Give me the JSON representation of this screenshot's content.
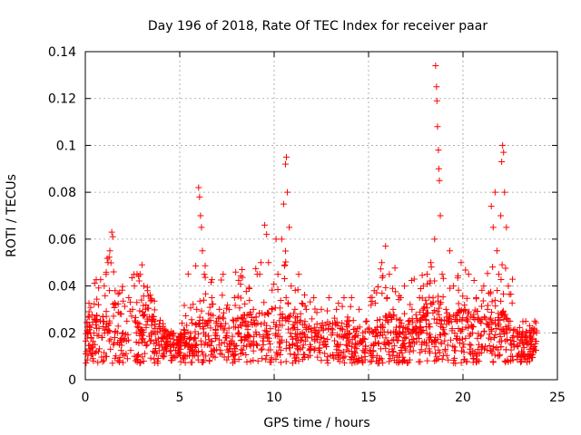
{
  "chart_data": {
    "type": "scatter",
    "title": "Day 196 of 2018, Rate Of TEC Index for receiver paar",
    "xlabel": "GPS time / hours",
    "ylabel": "ROTI / TECUs",
    "xlim": [
      0,
      25
    ],
    "ylim": [
      0,
      0.14
    ],
    "x_ticks": [
      0,
      5,
      10,
      15,
      20,
      25
    ],
    "x_tick_labels": [
      "0",
      "5",
      "10",
      "15",
      "20",
      "25"
    ],
    "y_ticks": [
      0,
      0.02,
      0.04,
      0.06,
      0.08,
      0.1,
      0.12,
      0.14
    ],
    "y_tick_labels": [
      "0",
      "0.02",
      "0.04",
      "0.06",
      "0.08",
      "0.1",
      "0.12",
      "0.14"
    ],
    "grid": true,
    "marker": "+",
    "color": "#ff0000",
    "series": [
      {
        "name": "ROTI",
        "hourly_profile": [
          {
            "hour": 0,
            "typical": 0.016,
            "max": 0.029
          },
          {
            "hour": 1,
            "typical": 0.02,
            "max": 0.055
          },
          {
            "hour": 1.4,
            "typical": 0.025,
            "max": 0.063
          },
          {
            "hour": 2,
            "typical": 0.018,
            "max": 0.04
          },
          {
            "hour": 3,
            "typical": 0.024,
            "max": 0.049
          },
          {
            "hour": 4,
            "typical": 0.015,
            "max": 0.027
          },
          {
            "hour": 5,
            "typical": 0.013,
            "max": 0.018
          },
          {
            "hour": 6,
            "typical": 0.02,
            "max": 0.082
          },
          {
            "hour": 7,
            "typical": 0.018,
            "max": 0.045
          },
          {
            "hour": 8,
            "typical": 0.018,
            "max": 0.047
          },
          {
            "hour": 9,
            "typical": 0.02,
            "max": 0.05
          },
          {
            "hour": 9.6,
            "typical": 0.022,
            "max": 0.066
          },
          {
            "hour": 10.6,
            "typical": 0.025,
            "max": 0.095
          },
          {
            "hour": 11,
            "typical": 0.018,
            "max": 0.045
          },
          {
            "hour": 12,
            "typical": 0.016,
            "max": 0.035
          },
          {
            "hour": 13,
            "typical": 0.017,
            "max": 0.035
          },
          {
            "hour": 14,
            "typical": 0.016,
            "max": 0.035
          },
          {
            "hour": 15,
            "typical": 0.015,
            "max": 0.038
          },
          {
            "hour": 16,
            "typical": 0.02,
            "max": 0.057
          },
          {
            "hour": 17,
            "typical": 0.016,
            "max": 0.04
          },
          {
            "hour": 18,
            "typical": 0.022,
            "max": 0.05
          },
          {
            "hour": 18.6,
            "typical": 0.025,
            "max": 0.134
          },
          {
            "hour": 19,
            "typical": 0.02,
            "max": 0.055
          },
          {
            "hour": 20,
            "typical": 0.02,
            "max": 0.05
          },
          {
            "hour": 21,
            "typical": 0.018,
            "max": 0.04
          },
          {
            "hour": 21.6,
            "typical": 0.02,
            "max": 0.08
          },
          {
            "hour": 22.1,
            "typical": 0.02,
            "max": 0.1
          },
          {
            "hour": 23,
            "typical": 0.013,
            "max": 0.025
          },
          {
            "hour": 23.9,
            "typical": 0.015,
            "max": 0.025
          }
        ],
        "points": [
          [
            0.05,
            0.012
          ],
          [
            0.1,
            0.021
          ],
          [
            0.15,
            0.027
          ],
          [
            0.2,
            0.029
          ],
          [
            0.3,
            0.018
          ],
          [
            0.4,
            0.009
          ],
          [
            0.5,
            0.015
          ],
          [
            0.6,
            0.022
          ],
          [
            0.7,
            0.012
          ],
          [
            0.8,
            0.025
          ],
          [
            0.9,
            0.018
          ],
          [
            1.0,
            0.04
          ],
          [
            1.1,
            0.045
          ],
          [
            1.2,
            0.05
          ],
          [
            1.3,
            0.055
          ],
          [
            1.4,
            0.063
          ],
          [
            1.45,
            0.061
          ],
          [
            1.5,
            0.046
          ],
          [
            1.6,
            0.032
          ],
          [
            1.7,
            0.02
          ],
          [
            1.8,
            0.015
          ],
          [
            2.0,
            0.02
          ],
          [
            2.2,
            0.025
          ],
          [
            2.3,
            0.035
          ],
          [
            2.5,
            0.03
          ],
          [
            2.6,
            0.04
          ],
          [
            2.7,
            0.02
          ],
          [
            2.9,
            0.045
          ],
          [
            3.0,
            0.049
          ],
          [
            3.1,
            0.04
          ],
          [
            3.2,
            0.03
          ],
          [
            3.3,
            0.025
          ],
          [
            3.5,
            0.02
          ],
          [
            3.7,
            0.025
          ],
          [
            3.9,
            0.015
          ],
          [
            4.1,
            0.018
          ],
          [
            4.3,
            0.012
          ],
          [
            4.5,
            0.015
          ],
          [
            4.7,
            0.01
          ],
          [
            4.9,
            0.012
          ],
          [
            5.1,
            0.016
          ],
          [
            5.3,
            0.01
          ],
          [
            5.5,
            0.015
          ],
          [
            5.7,
            0.011
          ],
          [
            5.9,
            0.03
          ],
          [
            6.0,
            0.082
          ],
          [
            6.05,
            0.078
          ],
          [
            6.1,
            0.07
          ],
          [
            6.15,
            0.065
          ],
          [
            6.2,
            0.055
          ],
          [
            6.3,
            0.045
          ],
          [
            6.5,
            0.025
          ],
          [
            6.7,
            0.035
          ],
          [
            6.9,
            0.02
          ],
          [
            7.1,
            0.03
          ],
          [
            7.3,
            0.045
          ],
          [
            7.5,
            0.02
          ],
          [
            7.7,
            0.015
          ],
          [
            7.9,
            0.035
          ],
          [
            8.1,
            0.02
          ],
          [
            8.3,
            0.047
          ],
          [
            8.5,
            0.025
          ],
          [
            8.7,
            0.015
          ],
          [
            8.9,
            0.03
          ],
          [
            9.1,
            0.045
          ],
          [
            9.3,
            0.05
          ],
          [
            9.5,
            0.066
          ],
          [
            9.6,
            0.062
          ],
          [
            9.7,
            0.05
          ],
          [
            9.9,
            0.03
          ],
          [
            10.1,
            0.06
          ],
          [
            10.2,
            0.045
          ],
          [
            10.4,
            0.06
          ],
          [
            10.5,
            0.075
          ],
          [
            10.6,
            0.092
          ],
          [
            10.65,
            0.095
          ],
          [
            10.7,
            0.08
          ],
          [
            10.8,
            0.065
          ],
          [
            10.9,
            0.04
          ],
          [
            11.1,
            0.03
          ],
          [
            11.3,
            0.045
          ],
          [
            11.5,
            0.02
          ],
          [
            11.7,
            0.03
          ],
          [
            11.9,
            0.015
          ],
          [
            12.1,
            0.035
          ],
          [
            12.3,
            0.02
          ],
          [
            12.5,
            0.03
          ],
          [
            12.7,
            0.015
          ],
          [
            12.9,
            0.035
          ],
          [
            13.1,
            0.02
          ],
          [
            13.3,
            0.03
          ],
          [
            13.5,
            0.015
          ],
          [
            13.7,
            0.035
          ],
          [
            13.9,
            0.025
          ],
          [
            14.1,
            0.035
          ],
          [
            14.3,
            0.015
          ],
          [
            14.5,
            0.03
          ],
          [
            14.7,
            0.02
          ],
          [
            14.9,
            0.025
          ],
          [
            15.1,
            0.035
          ],
          [
            15.3,
            0.038
          ],
          [
            15.5,
            0.02
          ],
          [
            15.7,
            0.05
          ],
          [
            15.9,
            0.057
          ],
          [
            16.1,
            0.045
          ],
          [
            16.3,
            0.03
          ],
          [
            16.5,
            0.02
          ],
          [
            16.7,
            0.035
          ],
          [
            16.9,
            0.04
          ],
          [
            17.1,
            0.025
          ],
          [
            17.3,
            0.03
          ],
          [
            17.5,
            0.02
          ],
          [
            17.7,
            0.035
          ],
          [
            17.9,
            0.04
          ],
          [
            18.1,
            0.045
          ],
          [
            18.3,
            0.05
          ],
          [
            18.5,
            0.06
          ],
          [
            18.55,
            0.134
          ],
          [
            18.6,
            0.125
          ],
          [
            18.62,
            0.119
          ],
          [
            18.65,
            0.108
          ],
          [
            18.7,
            0.098
          ],
          [
            18.72,
            0.09
          ],
          [
            18.75,
            0.085
          ],
          [
            18.8,
            0.07
          ],
          [
            18.9,
            0.045
          ],
          [
            19.1,
            0.03
          ],
          [
            19.3,
            0.055
          ],
          [
            19.5,
            0.04
          ],
          [
            19.7,
            0.025
          ],
          [
            19.9,
            0.05
          ],
          [
            20.1,
            0.03
          ],
          [
            20.3,
            0.045
          ],
          [
            20.5,
            0.02
          ],
          [
            20.7,
            0.035
          ],
          [
            20.9,
            0.025
          ],
          [
            21.1,
            0.04
          ],
          [
            21.3,
            0.03
          ],
          [
            21.5,
            0.074
          ],
          [
            21.6,
            0.065
          ],
          [
            21.7,
            0.08
          ],
          [
            21.8,
            0.055
          ],
          [
            21.9,
            0.045
          ],
          [
            22.0,
            0.07
          ],
          [
            22.05,
            0.093
          ],
          [
            22.1,
            0.1
          ],
          [
            22.15,
            0.097
          ],
          [
            22.2,
            0.08
          ],
          [
            22.3,
            0.065
          ],
          [
            22.4,
            0.04
          ],
          [
            22.5,
            0.025
          ],
          [
            22.7,
            0.015
          ],
          [
            22.9,
            0.02
          ],
          [
            23.1,
            0.012
          ],
          [
            23.3,
            0.018
          ],
          [
            23.5,
            0.01
          ],
          [
            23.7,
            0.022
          ],
          [
            23.8,
            0.025
          ],
          [
            23.9,
            0.02
          ]
        ]
      }
    ]
  }
}
